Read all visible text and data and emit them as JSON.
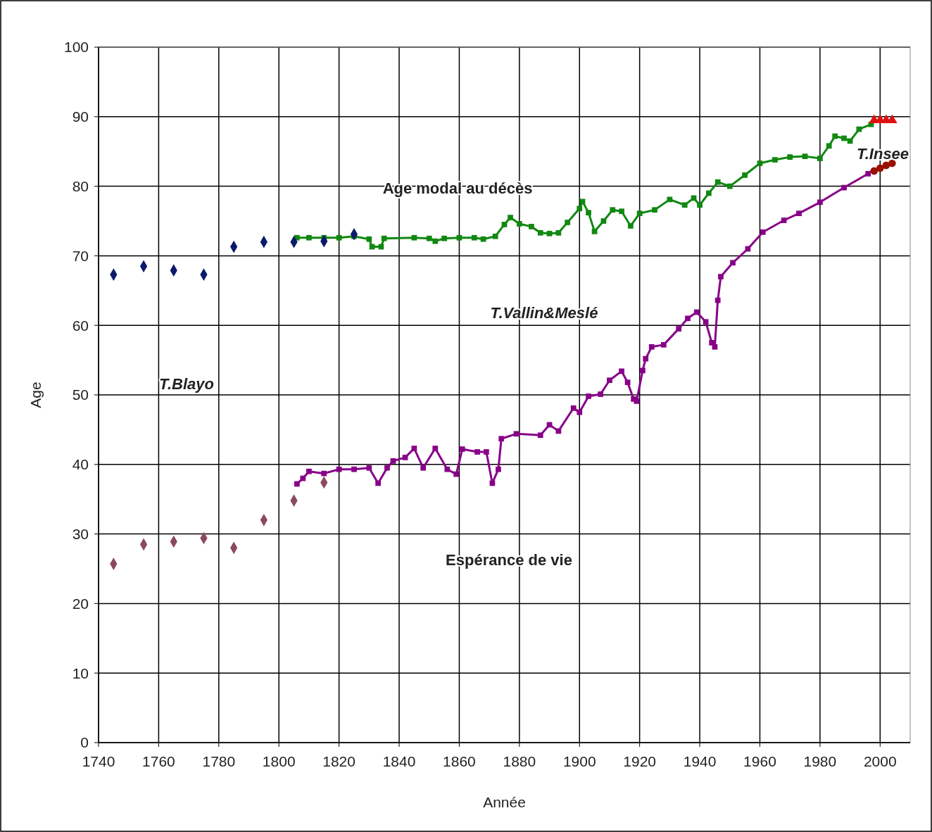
{
  "chart_data": {
    "type": "line",
    "xlabel": "Année",
    "ylabel": "Age",
    "xlim": [
      1740,
      2010
    ],
    "ylim": [
      0,
      100
    ],
    "xticks": [
      1740,
      1760,
      1780,
      1800,
      1820,
      1840,
      1860,
      1880,
      1900,
      1920,
      1940,
      1960,
      1980,
      2000
    ],
    "yticks": [
      0,
      10,
      20,
      30,
      40,
      50,
      60,
      70,
      80,
      90,
      100
    ],
    "grid": true,
    "series": [
      {
        "type": "scatter",
        "marker": "diamond",
        "color": "#0a1a6b",
        "x": [
          1745,
          1755,
          1765,
          1775,
          1785,
          1795,
          1805,
          1815,
          1825
        ],
        "values": [
          67.3,
          68.5,
          67.9,
          67.3,
          71.3,
          72.0,
          72.0,
          72.1,
          73.1
        ]
      },
      {
        "type": "scatter",
        "marker": "diamond",
        "color": "#8b4a5c",
        "x": [
          1745,
          1755,
          1765,
          1775,
          1785,
          1795,
          1805,
          1815
        ],
        "values": [
          25.7,
          28.5,
          28.9,
          29.4,
          28.0,
          32.0,
          34.8,
          37.4
        ]
      },
      {
        "marker": "square",
        "color": "#118811",
        "x": [
          1806,
          1810,
          1815,
          1820,
          1825,
          1830,
          1831,
          1834,
          1835,
          1845,
          1850,
          1852,
          1855,
          1860,
          1865,
          1868,
          1872,
          1875,
          1877,
          1880,
          1884,
          1887,
          1890,
          1893,
          1896,
          1900,
          1901,
          1903,
          1905,
          1908,
          1911,
          1914,
          1917,
          1920,
          1925,
          1930,
          1935,
          1938,
          1940,
          1943,
          1946,
          1950,
          1955,
          1960,
          1965,
          1970,
          1975,
          1980,
          1983,
          1985,
          1988,
          1990,
          1993,
          1997
        ],
        "values": [
          72.6,
          72.6,
          72.6,
          72.6,
          72.8,
          72.4,
          71.3,
          71.3,
          72.5,
          72.6,
          72.5,
          72.1,
          72.5,
          72.6,
          72.6,
          72.4,
          72.8,
          74.5,
          75.5,
          74.6,
          74.2,
          73.3,
          73.2,
          73.3,
          74.8,
          76.8,
          77.8,
          76.2,
          73.5,
          75.0,
          76.6,
          76.4,
          74.3,
          76.1,
          76.6,
          78.1,
          77.3,
          78.3,
          77.3,
          79.0,
          80.6,
          80.0,
          81.6,
          83.3,
          83.8,
          84.2,
          84.3,
          84.0,
          85.8,
          87.2,
          86.9,
          86.5,
          88.2,
          88.9
        ]
      },
      {
        "marker": "square",
        "color": "#880088",
        "x": [
          1806,
          1808,
          1810,
          1815,
          1820,
          1825,
          1830,
          1833,
          1836,
          1838,
          1842,
          1845,
          1848,
          1852,
          1856,
          1859,
          1861,
          1866,
          1869,
          1871,
          1873,
          1874,
          1879,
          1887,
          1890,
          1893,
          1898,
          1900,
          1903,
          1907,
          1910,
          1914,
          1916,
          1918,
          1919,
          1921,
          1922,
          1924,
          1928,
          1933,
          1936,
          1939,
          1942,
          1944,
          1945,
          1946,
          1947,
          1951,
          1956,
          1961,
          1968,
          1973,
          1980,
          1988,
          1996
        ],
        "values": [
          37.2,
          38.0,
          39.0,
          38.7,
          39.3,
          39.3,
          39.5,
          37.3,
          39.5,
          40.5,
          41.0,
          42.3,
          39.5,
          42.3,
          39.3,
          38.6,
          42.2,
          41.8,
          41.8,
          37.3,
          39.3,
          43.7,
          44.4,
          44.2,
          45.7,
          44.8,
          48.1,
          47.5,
          49.8,
          50.1,
          52.1,
          53.4,
          51.8,
          49.4,
          49.1,
          53.5,
          55.2,
          56.9,
          57.2,
          59.5,
          61.0,
          61.9,
          60.5,
          57.5,
          56.9,
          63.6,
          67.0,
          69.0,
          71.0,
          73.4,
          75.1,
          76.1,
          77.7,
          79.8,
          81.8
        ]
      },
      {
        "type": "scatter",
        "marker": "triangle",
        "color": "#dd1111",
        "x": [
          1998,
          2000,
          2002,
          2004
        ],
        "values": [
          89.5,
          89.5,
          89.5,
          89.5
        ]
      },
      {
        "type": "scatter",
        "marker": "circle",
        "color": "#991100",
        "x": [
          1998,
          2000,
          2002,
          2004
        ],
        "values": [
          82.2,
          82.6,
          83.0,
          83.3
        ]
      }
    ],
    "annotations": [
      "Age modal au décès",
      "T.Vallin&Meslé",
      "T.Blayo",
      "Espérance de vie",
      "T.Insee"
    ]
  }
}
